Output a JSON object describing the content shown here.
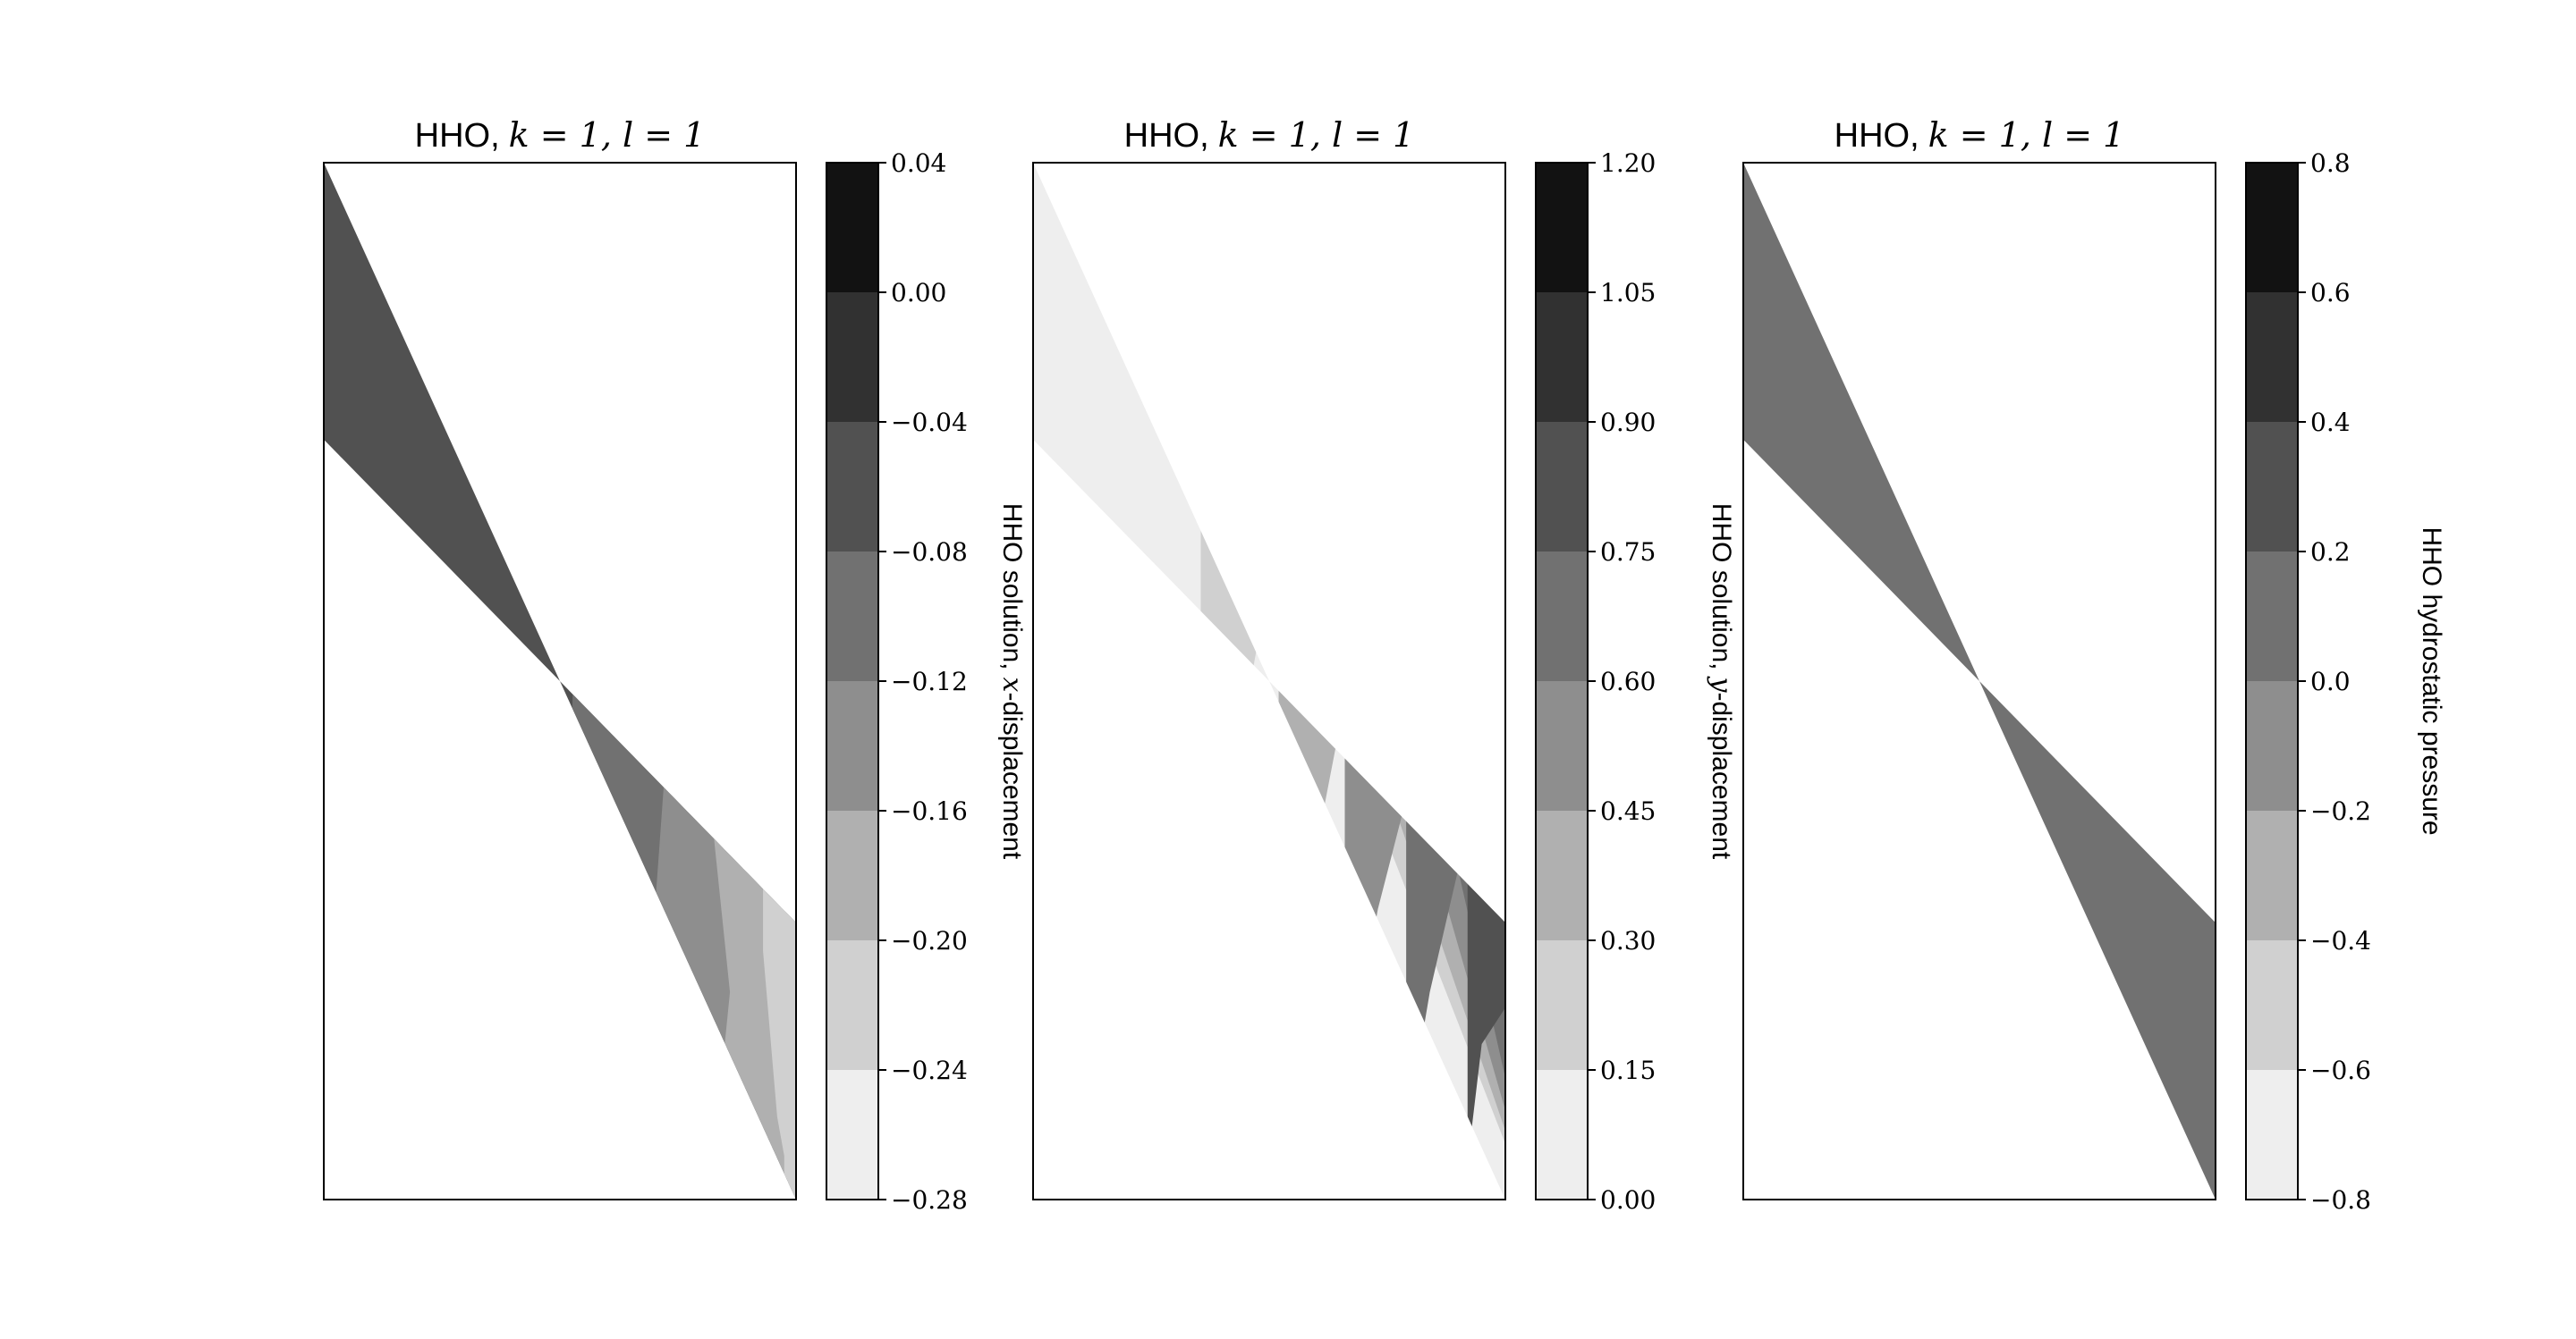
{
  "chart_data": [
    {
      "type": "filled_contour",
      "title_text": "HHO,",
      "title_math": "k = 1, l = 1",
      "colorbar_label_text": "HHO solution,",
      "colorbar_label_math": "x",
      "colorbar_label_suffix": "-displacement",
      "colorbar_ticks": [
        "0.04",
        "0.00",
        "−0.04",
        "−0.08",
        "−0.12",
        "−0.16",
        "−0.20",
        "−0.24",
        "−0.28"
      ],
      "levels": [
        -0.28,
        -0.24,
        -0.2,
        -0.16,
        -0.12,
        -0.08,
        -0.04,
        0.0,
        0.04
      ],
      "level_colors": [
        "#eeeeee",
        "#d0d0d0",
        "#b0b0b0",
        "#8e8e8e",
        "#717171",
        "#515151",
        "#313131",
        "#121212"
      ],
      "domain": [
        [
          0,
          0.267
        ],
        [
          1,
          0.733
        ],
        [
          1,
          1
        ],
        [
          0,
          0
        ]
      ],
      "bands": [
        {
          "lower": -0.08,
          "boundary": [
            [
              0.373,
              0.01
            ],
            [
              0.329,
              0.26
            ],
            [
              0.362,
              0.55
            ],
            [
              0.37,
              0.826
            ]
          ]
        },
        {
          "lower": -0.12,
          "boundary": [
            [
              0.535,
              0.22
            ],
            [
              0.53,
              0.47
            ],
            [
              0.516,
              0.674
            ],
            [
              0.53,
              0.885
            ]
          ]
        },
        {
          "lower": -0.16,
          "boundary": [
            [
              0.688,
              0.418
            ],
            [
              0.72,
              0.6
            ],
            [
              0.69,
              0.79
            ],
            [
              0.693,
              0.923
            ]
          ]
        },
        {
          "lower": -0.2,
          "boundary": [
            [
              0.814,
              0.598
            ],
            [
              0.86,
              0.8
            ],
            [
              0.827,
              0.95
            ]
          ]
        },
        {
          "lower": -0.24,
          "boundary": [
            [
              0.93,
              0.76
            ],
            [
              0.96,
              0.92
            ],
            [
              0.975,
              0.958
            ]
          ]
        }
      ]
    },
    {
      "type": "filled_contour",
      "title_text": "HHO,",
      "title_math": "k = 1, l = 1",
      "colorbar_label_text": "HHO solution,",
      "colorbar_label_math": "y",
      "colorbar_label_suffix": "-displacement",
      "colorbar_ticks": [
        "1.20",
        "1.05",
        "0.90",
        "0.75",
        "0.60",
        "0.45",
        "0.30",
        "0.15",
        "0.00"
      ],
      "levels": [
        0.0,
        0.15,
        0.3,
        0.45,
        0.6,
        0.75,
        0.9,
        1.05,
        1.2
      ],
      "level_colors": [
        "#eeeeee",
        "#d0d0d0",
        "#b0b0b0",
        "#8e8e8e",
        "#717171",
        "#515151",
        "#313131",
        "#121212"
      ],
      "domain": [
        [
          0,
          0.267
        ],
        [
          1,
          0.733
        ],
        [
          1,
          1
        ],
        [
          0,
          0
        ]
      ],
      "bands": [
        {
          "lower": 0.0,
          "boundary": [
            [
              0.17,
              0.78
            ],
            [
              0.24,
              0.5
            ],
            [
              0.32,
              0.245
            ]
          ]
        },
        {
          "lower": 0.15,
          "boundary": [
            [
              0.355,
              0.825
            ],
            [
              0.43,
              0.58
            ],
            [
              0.51,
              0.375
            ]
          ]
        },
        {
          "lower": 0.3,
          "boundary": [
            [
              0.52,
              0.865
            ],
            [
              0.6,
              0.66
            ],
            [
              0.67,
              0.495
            ]
          ]
        },
        {
          "lower": 0.45,
          "boundary": [
            [
              0.66,
              0.9
            ],
            [
              0.73,
              0.72
            ],
            [
              0.8,
              0.596
            ]
          ]
        },
        {
          "lower": 0.6,
          "boundary": [
            [
              0.79,
              0.935
            ],
            [
              0.84,
              0.8
            ],
            [
              0.9,
              0.682
            ]
          ]
        },
        {
          "lower": 0.75,
          "boundary": [
            [
              0.92,
              0.965
            ],
            [
              0.95,
              0.85
            ],
            [
              1.0,
              0.815
            ]
          ]
        }
      ]
    },
    {
      "type": "filled_contour",
      "title_text": "HHO,",
      "title_math": "k = 1, l = 1",
      "colorbar_label_text": "HHO hydrostatic pressure",
      "colorbar_label_math": "",
      "colorbar_label_suffix": "",
      "colorbar_ticks": [
        "0.8",
        "0.6",
        "0.4",
        "0.2",
        "0.0",
        "−0.2",
        "−0.4",
        "−0.6",
        "−0.8"
      ],
      "levels": [
        -0.8,
        -0.6,
        -0.4,
        -0.2,
        0.0,
        0.2,
        0.4,
        0.6,
        0.8
      ],
      "level_colors": [
        "#eeeeee",
        "#d0d0d0",
        "#b0b0b0",
        "#8e8e8e",
        "#717171",
        "#515151",
        "#313131",
        "#121212"
      ],
      "domain": [
        [
          0,
          0.267
        ],
        [
          1,
          0.733
        ],
        [
          1,
          1
        ],
        [
          0,
          0
        ]
      ],
      "bands": [
        {
          "lower": 0.0,
          "boundary": []
        }
      ]
    }
  ]
}
